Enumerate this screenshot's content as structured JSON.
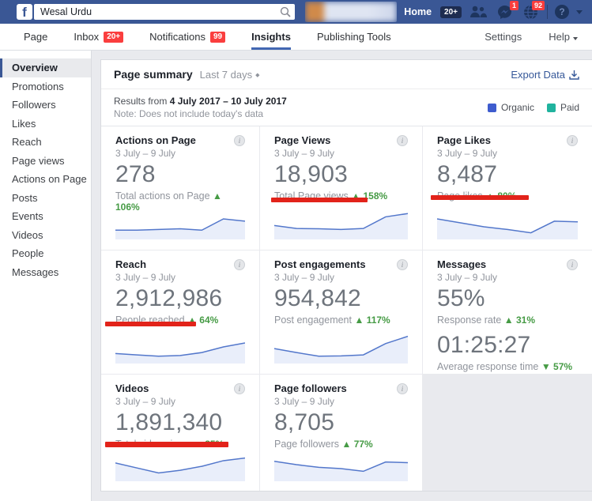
{
  "glyphs": {
    "up": "▲",
    "down": "▼",
    "info": "i",
    "diamond": "◆",
    "question": "?"
  },
  "colors": {
    "chart_line": "#5377cb",
    "chart_fill": "#e9eefa"
  },
  "topbar": {
    "logo_letter": "f",
    "search_value": "Wesal Urdu",
    "home_label": "Home",
    "home_badge": "20+",
    "messenger_badge": "1",
    "notifications_badge": "92"
  },
  "nav": {
    "items": [
      {
        "label": "Page"
      },
      {
        "label": "Inbox",
        "badge": "20+"
      },
      {
        "label": "Notifications",
        "badge": "99"
      },
      {
        "label": "Insights"
      },
      {
        "label": "Publishing Tools"
      }
    ],
    "settings": "Settings",
    "help": "Help"
  },
  "sidebar": {
    "items": [
      {
        "label": "Overview"
      },
      {
        "label": "Promotions"
      },
      {
        "label": "Followers"
      },
      {
        "label": "Likes"
      },
      {
        "label": "Reach"
      },
      {
        "label": "Page views"
      },
      {
        "label": "Actions on Page"
      },
      {
        "label": "Posts"
      },
      {
        "label": "Events"
      },
      {
        "label": "Videos"
      },
      {
        "label": "People"
      },
      {
        "label": "Messages"
      }
    ]
  },
  "summary": {
    "title": "Page summary",
    "range_label": "Last 7 days",
    "export_label": "Export Data",
    "results_prefix": "Results from",
    "results_range": "4 July 2017 – 10 July 2017",
    "note": "Note: Does not include today's data",
    "legend": [
      {
        "label": "Organic",
        "color": "#3e5cce"
      },
      {
        "label": "Paid",
        "color": "#20b39e"
      }
    ]
  },
  "cards": [
    {
      "title": "Actions on Page",
      "date": "3 July – 9 July",
      "value": "278",
      "label": "Total actions on Page",
      "delta": "106%",
      "trend": "up",
      "sparkline": [
        28,
        28,
        30,
        32,
        28,
        62,
        55
      ]
    },
    {
      "title": "Page Views",
      "date": "3 July – 9 July",
      "value": "18,903",
      "label": "Total Page views",
      "delta": "158%",
      "trend": "up",
      "underlined": true,
      "sparkline": [
        42,
        33,
        32,
        30,
        33,
        68,
        78
      ]
    },
    {
      "title": "Page Likes",
      "date": "3 July – 9 July",
      "value": "8,487",
      "label": "Page likes",
      "delta": "80%",
      "trend": "up",
      "underlined": true,
      "sparkline": [
        62,
        50,
        38,
        30,
        20,
        55,
        53
      ]
    },
    {
      "title": "Reach",
      "date": "3 July – 9 July",
      "value": "2,912,986",
      "label": "People reached",
      "delta": "64%",
      "trend": "up",
      "underlined": true,
      "sparkline": [
        30,
        26,
        22,
        24,
        33,
        50,
        62
      ]
    },
    {
      "title": "Post engagements",
      "date": "3 July – 9 July",
      "value": "954,842",
      "label": "Post engagement",
      "delta": "117%",
      "trend": "up",
      "sparkline": [
        45,
        33,
        22,
        23,
        26,
        60,
        82
      ]
    },
    {
      "title": "Messages",
      "date": "3 July – 9 July",
      "metrics": [
        {
          "value": "55%",
          "label": "Response rate",
          "delta": "31%",
          "trend": "up"
        },
        {
          "value": "01:25:27",
          "label": "Average response time",
          "delta": "57%",
          "trend": "down"
        }
      ]
    },
    {
      "title": "Videos",
      "date": "3 July – 9 July",
      "value": "1,891,340",
      "label": "Total video views",
      "delta": "85%",
      "trend": "up",
      "underlined": true,
      "sparkline": [
        55,
        40,
        25,
        33,
        45,
        62,
        70
      ]
    },
    {
      "title": "Page followers",
      "date": "3 July – 9 July",
      "value": "8,705",
      "label": "Page followers",
      "delta": "77%",
      "trend": "up",
      "sparkline": [
        60,
        50,
        42,
        38,
        30,
        58,
        56
      ]
    }
  ]
}
